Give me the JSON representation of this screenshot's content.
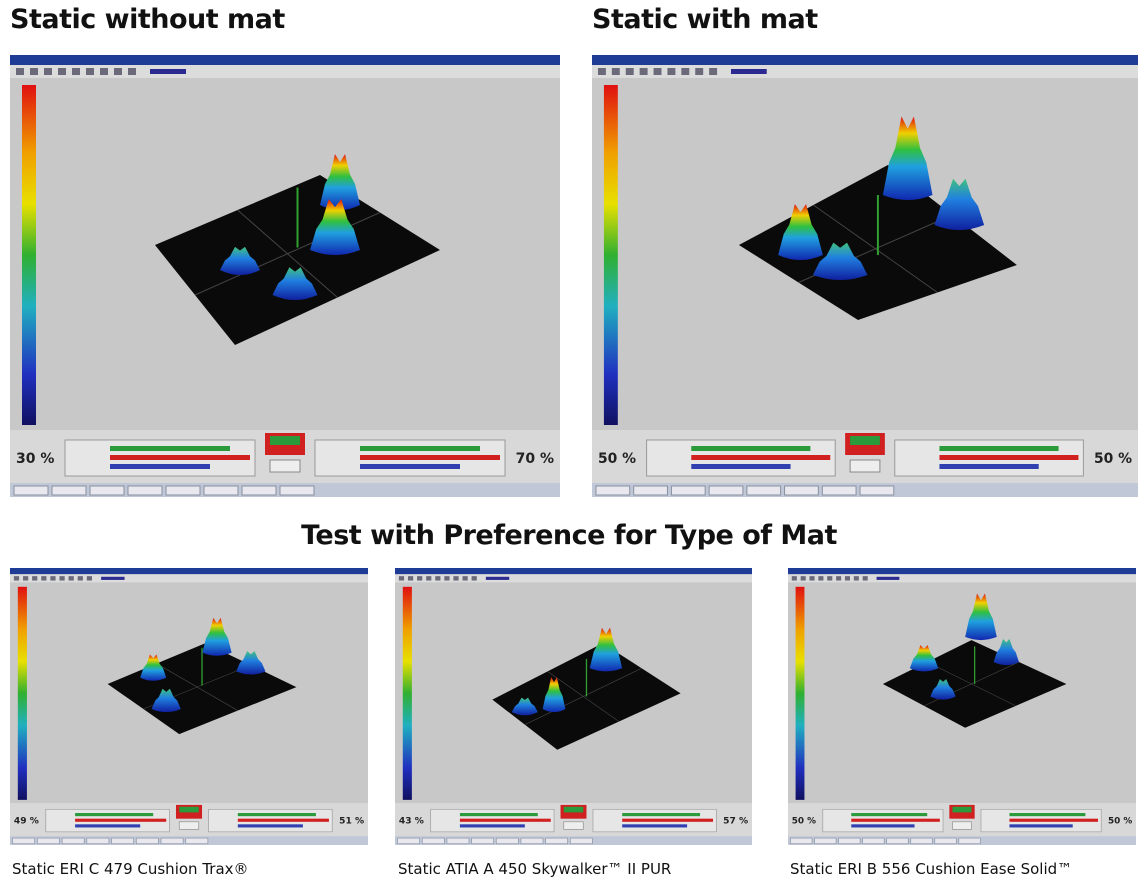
{
  "headings": {
    "top_left": "Static without mat",
    "top_right": "Static with mat",
    "middle": "Test with Preference for Type of Mat"
  },
  "panels": [
    {
      "left_percent": "30 %",
      "right_percent": "70 %"
    },
    {
      "left_percent": "50 %",
      "right_percent": "50 %"
    },
    {
      "left_percent": "49 %",
      "right_percent": "51 %",
      "caption": "Static ERI C 479 Cushion Trax®"
    },
    {
      "left_percent": "43 %",
      "right_percent": "57 %",
      "caption": "Static ATIA A 450 Skywalker™ II PUR"
    },
    {
      "left_percent": "50 %",
      "right_percent": "50 %",
      "caption": "Static ERI B 556 Cushion Ease Solid™"
    }
  ]
}
